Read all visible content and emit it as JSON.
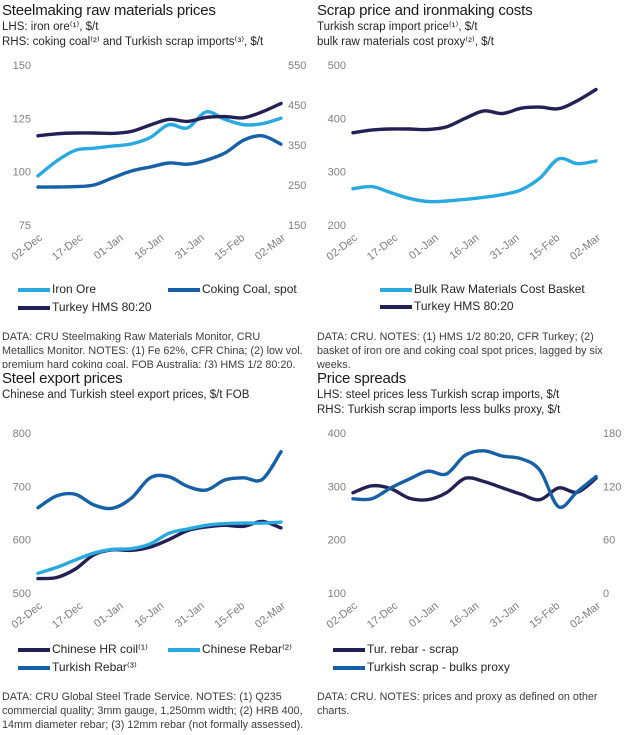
{
  "colors": {
    "light_blue": "#29A9E1",
    "medium_blue": "#1660A8",
    "dark_navy": "#232055",
    "axis_text": "#7f7f7f",
    "title_text": "#1a1a1a",
    "note_text": "#3d3d3d"
  },
  "chart_data": [
    {
      "type": "line",
      "title": "Steelmaking raw materials prices",
      "subtitle": [
        "LHS:  iron ore⁽¹⁾, $/t",
        "RHS: coking coal⁽²⁾ and Turkish scrap imports⁽³⁾, $/t"
      ],
      "x_labels": [
        "02-Dec",
        "17-Dec",
        "01-Jan",
        "16-Jan",
        "31-Jan",
        "15-Feb",
        "02-Mar"
      ],
      "left_axis": {
        "min": 75,
        "max": 150,
        "ticks": [
          150,
          125,
          100,
          75
        ]
      },
      "right_axis": {
        "min": 150,
        "max": 550,
        "ticks": [
          550,
          450,
          350,
          250,
          150
        ]
      },
      "series": [
        {
          "name": "Iron Ore",
          "axis": "left",
          "color": "light_blue",
          "values": [
            98,
            105,
            110,
            111,
            112,
            113,
            116,
            122,
            120.5,
            128,
            124.5,
            122,
            122.5,
            125
          ]
        },
        {
          "name": "Coking Coal, spot",
          "axis": "right",
          "color": "medium_blue",
          "values": [
            245,
            245,
            246,
            250,
            268,
            285,
            295,
            305,
            302,
            312,
            330,
            362,
            373,
            352
          ]
        },
        {
          "name": "Turkey HMS 80:20",
          "axis": "right",
          "color": "dark_navy",
          "values": [
            373,
            378,
            380,
            380,
            379,
            384,
            400,
            414,
            409,
            419,
            421,
            418,
            433,
            454
          ]
        }
      ],
      "legend": [
        {
          "label": "Iron Ore",
          "color": "light_blue"
        },
        {
          "label": "Coking Coal, spot",
          "color": "medium_blue"
        },
        {
          "label": "Turkey HMS 80:20",
          "color": "dark_navy"
        }
      ],
      "notes": "DATA: CRU Steelmaking Raw Materials Monitor, CRU Metallics Monitor.  NOTES: (1) Fe 62%, CFR China; (2) low vol. premium hard coking coal, FOB Australia; (3) HMS 1/2 80:20, CFR Turkey."
    },
    {
      "type": "line",
      "title": "Scrap price and ironmaking costs",
      "subtitle": [
        "Turkish scrap import price⁽¹⁾, $/t",
        "bulk raw materials cost proxy⁽²⁾, $/t"
      ],
      "x_labels": [
        "02-Dec",
        "17-Dec",
        "01-Jan",
        "16-Jan",
        "31-Jan",
        "15-Feb",
        "02-Mar"
      ],
      "left_axis": {
        "min": 200,
        "max": 500,
        "ticks": [
          500,
          400,
          300,
          200
        ]
      },
      "series": [
        {
          "name": "Bulk Raw Materials Cost Basket",
          "axis": "left",
          "color": "light_blue",
          "values": [
            268,
            272,
            261,
            250,
            244,
            245,
            248,
            252,
            257,
            266,
            288,
            324,
            315,
            320
          ]
        },
        {
          "name": "Turkey HMS 80:20",
          "axis": "left",
          "color": "dark_navy",
          "values": [
            373,
            378,
            380,
            380,
            379,
            384,
            400,
            414,
            409,
            419,
            421,
            418,
            433,
            454
          ]
        }
      ],
      "legend": [
        {
          "label": "Bulk Raw Materials Cost Basket",
          "color": "light_blue"
        },
        {
          "label": "Turkey HMS 80:20",
          "color": "dark_navy"
        }
      ],
      "notes": "DATA: CRU.  NOTES: (1) HMS 1/2 80:20, CFR Turkey; (2) basket of iron ore and coking coal spot prices, lagged by six weeks."
    },
    {
      "type": "line",
      "title": "Steel export prices",
      "subtitle": [
        "Chinese and Turkish steel export prices, $/t FOB"
      ],
      "x_labels": [
        "02-Dec",
        "17-Dec",
        "01-Jan",
        "16-Jan",
        "31-Jan",
        "15-Feb",
        "02-Mar"
      ],
      "left_axis": {
        "min": 500,
        "max": 800,
        "ticks": [
          800,
          700,
          600,
          500
        ]
      },
      "series": [
        {
          "name": "Chinese HR coil",
          "axis": "left",
          "color": "dark_navy",
          "values": [
            527,
            529,
            545,
            572,
            581,
            580,
            586,
            600,
            617,
            624,
            627,
            625,
            634,
            622
          ]
        },
        {
          "name": "Chinese Rebar",
          "axis": "left",
          "color": "light_blue",
          "values": [
            537,
            548,
            562,
            575,
            582,
            583,
            592,
            612,
            620,
            627,
            630,
            631,
            631,
            633
          ]
        },
        {
          "name": "Turkish Rebar",
          "axis": "left",
          "color": "medium_blue",
          "values": [
            660,
            682,
            685,
            665,
            659,
            678,
            716,
            718,
            700,
            693,
            712,
            716,
            713,
            765
          ]
        }
      ],
      "legend": [
        {
          "label": "Chinese HR coil⁽¹⁾",
          "color": "dark_navy"
        },
        {
          "label": "Chinese Rebar⁽²⁾",
          "color": "light_blue"
        },
        {
          "label": "Turkish Rebar⁽³⁾",
          "color": "medium_blue"
        }
      ],
      "notes": "DATA: CRU Global Steel Trade Service. NOTES: (1) Q235 commercial quality; 3mm gauge, 1,250mm width; (2) HRB 400, 14mm diameter rebar; (3) 12mm rebar (not formally assessed)."
    },
    {
      "type": "line",
      "title": "Price spreads",
      "subtitle": [
        "LHS: steel prices less Turkish scrap imports, $/t",
        "RHS: Turkish scrap imports less bulks proxy, $/t"
      ],
      "x_labels": [
        "02-Dec",
        "17-Dec",
        "01-Jan",
        "16-Jan",
        "31-Jan",
        "15-Feb",
        "02-Mar"
      ],
      "left_axis": {
        "min": 100,
        "max": 400,
        "ticks": [
          400,
          300,
          200,
          100
        ]
      },
      "right_axis": {
        "min": 0,
        "max": 180,
        "ticks": [
          180,
          120,
          60,
          0
        ]
      },
      "series": [
        {
          "name": "Tur. rebar - scrap",
          "axis": "left",
          "color": "dark_navy",
          "values": [
            288,
            301,
            296,
            278,
            275,
            288,
            315,
            309,
            297,
            285,
            275,
            297,
            289,
            315
          ]
        },
        {
          "name": "Turkish scrap - bulks proxy",
          "axis": "right",
          "color": "medium_blue",
          "values": [
            106,
            106,
            118,
            128,
            137,
            134,
            155,
            160,
            154,
            151,
            138,
            97,
            114,
            131
          ]
        }
      ],
      "legend": [
        {
          "label": "Tur. rebar - scrap",
          "color": "dark_navy"
        },
        {
          "label": "Turkish scrap - bulks proxy",
          "color": "medium_blue"
        }
      ],
      "notes": "DATA: CRU.  NOTES: prices and proxy as defined on other charts."
    }
  ]
}
